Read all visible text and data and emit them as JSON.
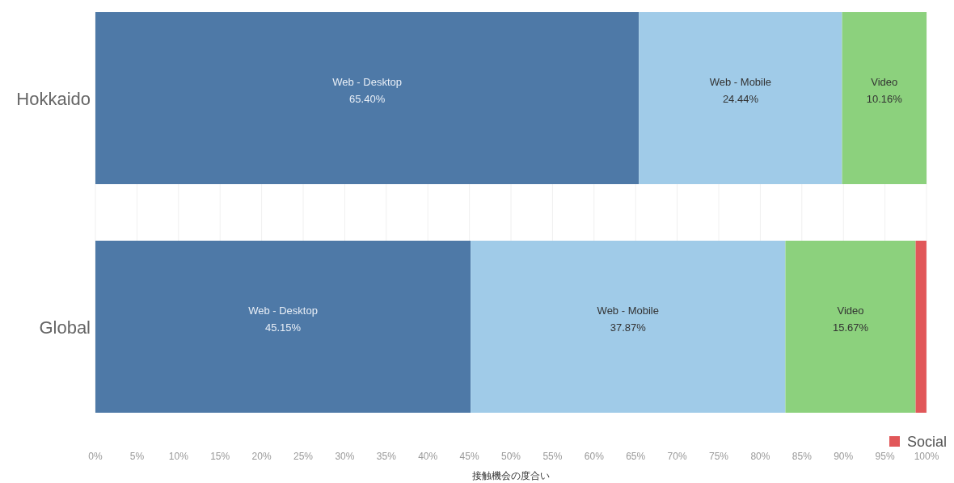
{
  "chart_data": {
    "type": "bar",
    "orientation": "horizontal",
    "stacked": true,
    "xlabel": "接触機会の度合い",
    "categories": [
      "Hokkaido",
      "Global"
    ],
    "series": [
      {
        "name": "Web - Desktop",
        "color": "#4e79a7",
        "values": [
          65.4,
          45.15
        ],
        "value_labels": [
          "65.40%",
          "45.15%"
        ]
      },
      {
        "name": "Web - Mobile",
        "color": "#a0cbe8",
        "values": [
          24.44,
          37.87
        ],
        "value_labels": [
          "24.44%",
          "37.87%"
        ]
      },
      {
        "name": "Video",
        "color": "#8cd17d",
        "values": [
          10.16,
          15.67
        ],
        "value_labels": [
          "10.16%",
          "15.67%"
        ]
      },
      {
        "name": "Social",
        "color": "#e15759",
        "values": [
          null,
          1.3
        ]
      }
    ],
    "xlim": [
      0,
      100
    ],
    "xticks": [
      {
        "value": 0,
        "label": "0%"
      },
      {
        "value": 5,
        "label": "5%"
      },
      {
        "value": 10,
        "label": "10%"
      },
      {
        "value": 15,
        "label": "15%"
      },
      {
        "value": 20,
        "label": "20%"
      },
      {
        "value": 25,
        "label": "25%"
      },
      {
        "value": 30,
        "label": "30%"
      },
      {
        "value": 35,
        "label": "35%"
      },
      {
        "value": 40,
        "label": "40%"
      },
      {
        "value": 45,
        "label": "45%"
      },
      {
        "value": 50,
        "label": "50%"
      },
      {
        "value": 55,
        "label": "55%"
      },
      {
        "value": 60,
        "label": "60%"
      },
      {
        "value": 65,
        "label": "65%"
      },
      {
        "value": 70,
        "label": "70%"
      },
      {
        "value": 75,
        "label": "75%"
      },
      {
        "value": 80,
        "label": "80%"
      },
      {
        "value": 85,
        "label": "85%"
      },
      {
        "value": 90,
        "label": "90%"
      },
      {
        "value": 95,
        "label": "95%"
      },
      {
        "value": 100,
        "label": "100%"
      }
    ],
    "grid": "x",
    "legend": "bottom right"
  }
}
